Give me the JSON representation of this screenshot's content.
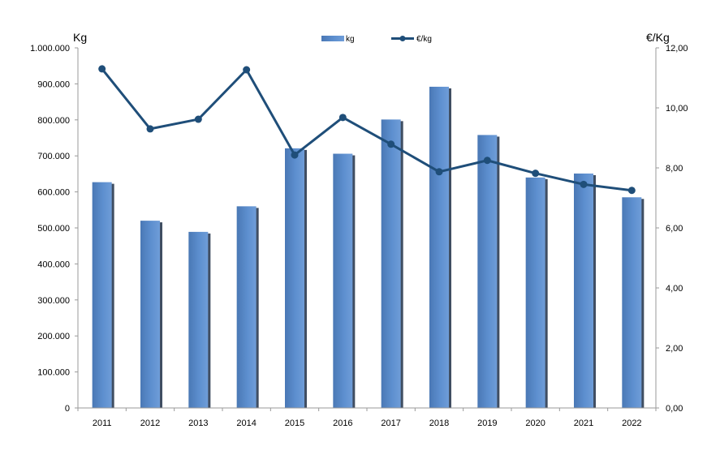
{
  "chart_data": {
    "type": "bar",
    "categories": [
      "2011",
      "2012",
      "2013",
      "2014",
      "2015",
      "2016",
      "2017",
      "2018",
      "2019",
      "2020",
      "2021",
      "2022"
    ],
    "series": [
      {
        "name": "kg",
        "type": "bar",
        "axis": "left",
        "color": "#5a8ac6",
        "values": [
          627000,
          520000,
          489000,
          560000,
          721000,
          706000,
          801000,
          892000,
          758000,
          640000,
          651000,
          585000
        ]
      },
      {
        "name": "€/kg",
        "type": "line",
        "axis": "right",
        "color": "#1f4e79",
        "values": [
          11.3,
          9.3,
          9.62,
          11.27,
          8.43,
          9.68,
          8.79,
          7.87,
          8.25,
          7.82,
          7.45,
          7.25
        ]
      }
    ],
    "ylabel_left": "Kg",
    "ylabel_right": "€/Kg",
    "ylim_left": [
      0,
      1000000
    ],
    "ylim_right": [
      0,
      12
    ],
    "yticks_left": [
      "0",
      "100.000",
      "200.000",
      "300.000",
      "400.000",
      "500.000",
      "600.000",
      "700.000",
      "800.000",
      "900.000",
      "1.000.000"
    ],
    "yticks_right": [
      "0,00",
      "2,00",
      "4,00",
      "6,00",
      "8,00",
      "10,00",
      "12,00"
    ],
    "grid": false,
    "legend": "top-center"
  }
}
